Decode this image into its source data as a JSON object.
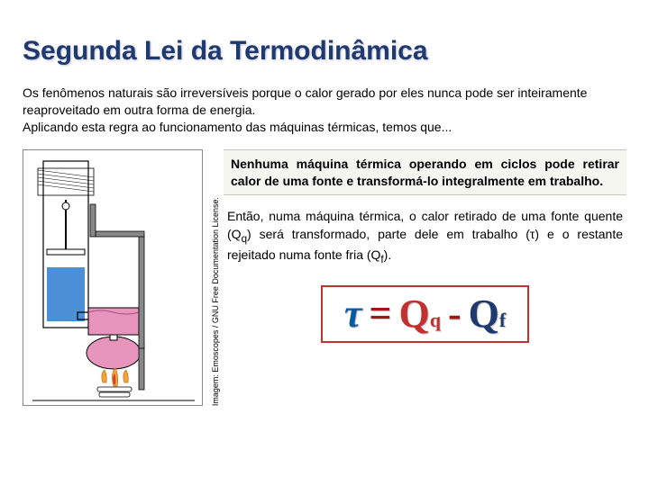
{
  "title": "Segunda Lei da Termodinâmica",
  "intro": "Os fenômenos naturais são irreversíveis porque o calor gerado por eles nunca pode ser inteiramente reaproveitado em outra forma de energia.\nAplicando esta regra ao funcionamento das máquinas térmicas, temos que...",
  "statement": "Nenhuma máquina térmica operando em ciclos pode retirar calor de uma fonte e transformá-lo integralmente em trabalho.",
  "explain_parts": {
    "p1": "Então, numa máquina térmica, o calor retirado de uma fonte quente (Q",
    "sub1": "q",
    "p2": ") será transformado, parte dele em trabalho (τ) e o restante rejeitado numa fonte fria (Q",
    "sub2": "f",
    "p3": ")."
  },
  "equation": {
    "tau": "τ",
    "eq": "=",
    "Q1": "Q",
    "q1sub": "q",
    "minus": "-",
    "Q2": "Q",
    "q2sub": "f"
  },
  "credit": "Imagem: Emoscopes / GNU Free Documentation License.",
  "diagram": {
    "colors": {
      "stroke": "#000000",
      "cylinder": "#ffffff",
      "water": "#4d8fd6",
      "hotwater": "#e895be",
      "flame_outer": "#f2a23a",
      "flame_inner": "#d83a3a",
      "pipe": "#888888"
    }
  }
}
